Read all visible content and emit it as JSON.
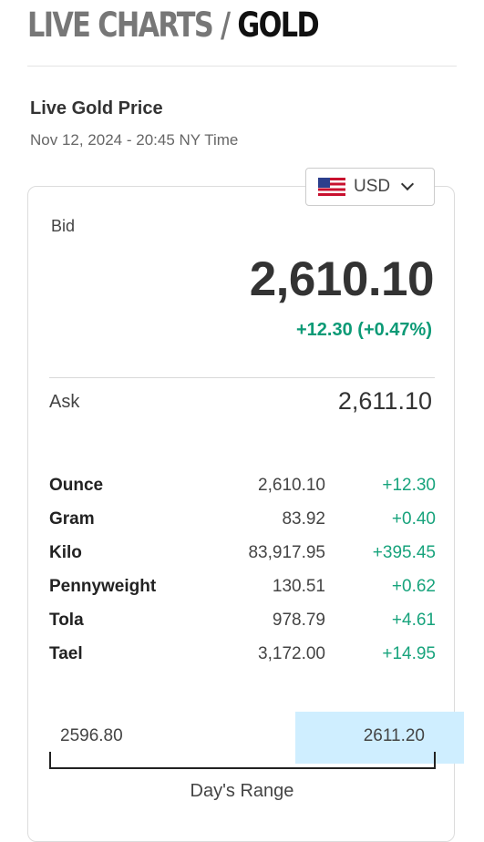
{
  "header": {
    "prefix": "LIVE CHARTS / ",
    "metal": "GOLD"
  },
  "section": {
    "title": "Live Gold Price",
    "timestamp": "Nov 12, 2024 - 20:45 NY Time"
  },
  "currency": {
    "code": "USD",
    "flag_icon": "us-flag-icon"
  },
  "bid": {
    "label": "Bid",
    "price": "2,610.10",
    "change": "+12.30 (+0.47%)"
  },
  "ask": {
    "label": "Ask",
    "price": "2,611.10"
  },
  "weights": [
    {
      "unit": "Ounce",
      "price": "2,610.10",
      "change": "+12.30"
    },
    {
      "unit": "Gram",
      "price": "83.92",
      "change": "+0.40"
    },
    {
      "unit": "Kilo",
      "price": "83,917.95",
      "change": "+395.45"
    },
    {
      "unit": "Pennyweight",
      "price": "130.51",
      "change": "+0.62"
    },
    {
      "unit": "Tola",
      "price": "978.79",
      "change": "+4.61"
    },
    {
      "unit": "Tael",
      "price": "3,172.00",
      "change": "+14.95"
    }
  ],
  "range": {
    "low": "2596.80",
    "high": "2611.20",
    "label": "Day's Range"
  },
  "colors": {
    "positive": "#17a37c",
    "highlight": "#cfeeff"
  }
}
